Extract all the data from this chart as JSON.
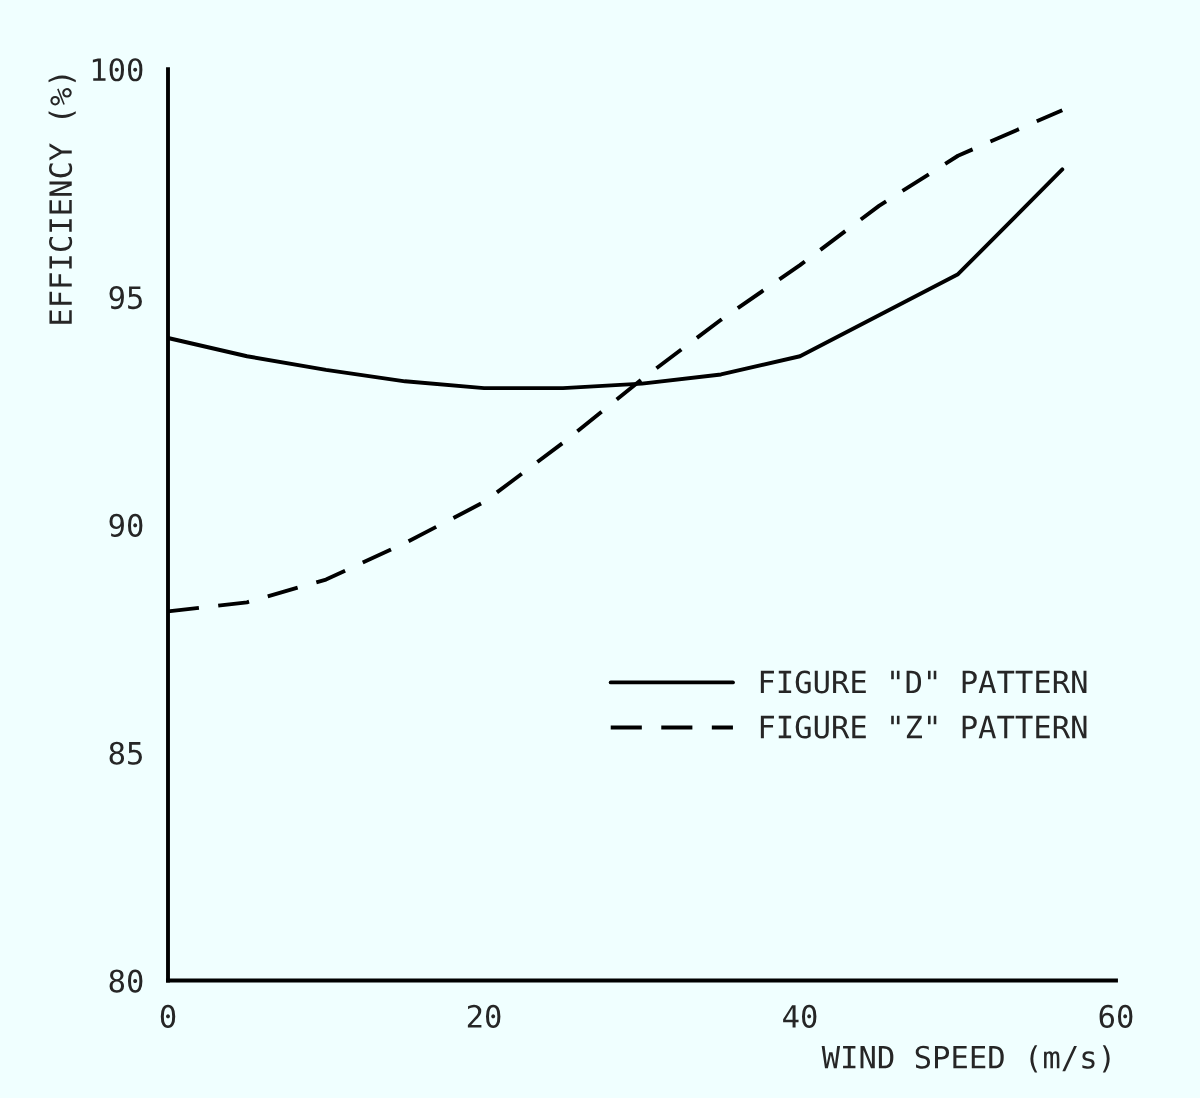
{
  "chart_data": {
    "type": "line",
    "xlabel": "WIND SPEED (m/s)",
    "ylabel": "EFFICIENCY (%)",
    "x": [
      0,
      5,
      10,
      15,
      20,
      25,
      30,
      35,
      40,
      45,
      50,
      56.6
    ],
    "series": [
      {
        "name": "FIGURE \"D\" PATTERN",
        "color": "#000000",
        "line_style": "solid",
        "values": [
          94.1,
          93.7,
          93.4,
          93.15,
          93.0,
          93.0,
          93.1,
          93.3,
          93.7,
          94.6,
          95.5,
          97.8
        ]
      },
      {
        "name": "FIGURE \"Z\" PATTERN",
        "color": "#000000",
        "line_style": "dashed",
        "values": [
          88.1,
          88.3,
          88.8,
          89.6,
          90.5,
          91.8,
          93.2,
          94.5,
          95.7,
          97.0,
          98.1,
          99.1
        ]
      }
    ],
    "xlim": [
      0,
      60
    ],
    "xticks": [
      0,
      20,
      40,
      60
    ],
    "ylim": [
      80,
      100
    ],
    "yticks": [
      80,
      85,
      90,
      95,
      100
    ],
    "grid": false,
    "legend": "center right",
    "marker": "none"
  }
}
